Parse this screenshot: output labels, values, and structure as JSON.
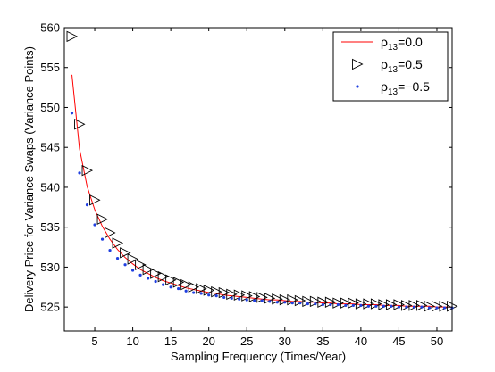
{
  "chart_data": {
    "type": "line",
    "xlabel": "Sampling Frequency (Times/Year)",
    "ylabel": "Delivery Price for Variance Swaps (Variance Points)",
    "xlim": [
      1,
      52
    ],
    "ylim": [
      522,
      560
    ],
    "xticks": [
      5,
      10,
      15,
      20,
      25,
      30,
      35,
      40,
      45,
      50
    ],
    "yticks": [
      525,
      530,
      535,
      540,
      545,
      550,
      555,
      560
    ],
    "grid": false,
    "legend_position": "top-right",
    "series": [
      {
        "name_main": "ρ",
        "name_sub": "13",
        "name_tail": "=0.0",
        "style": "line",
        "color": "#ff0000",
        "x": [
          2,
          3,
          4,
          5,
          6,
          7,
          8,
          9,
          10,
          11,
          12,
          13,
          14,
          15,
          16,
          17,
          18,
          19,
          20,
          21,
          22,
          23,
          24,
          25,
          26,
          27,
          28,
          29,
          30,
          31,
          32,
          33,
          34,
          35,
          36,
          37,
          38,
          39,
          40,
          41,
          42,
          43,
          44,
          45,
          46,
          47,
          48,
          49,
          50,
          51,
          52
        ],
        "values": [
          554.1,
          544.8,
          540.1,
          537.2,
          535.1,
          533.5,
          532.2,
          531.2,
          530.4,
          529.7,
          529.2,
          528.7,
          528.3,
          528.0,
          527.7,
          527.4,
          527.2,
          527.0,
          526.8,
          526.7,
          526.5,
          526.4,
          526.3,
          526.2,
          526.1,
          526.0,
          525.9,
          525.9,
          525.8,
          525.7,
          525.7,
          525.6,
          525.6,
          525.5,
          525.5,
          525.4,
          525.4,
          525.4,
          525.3,
          525.3,
          525.3,
          525.2,
          525.2,
          525.2,
          525.1,
          525.1,
          525.1,
          525.1,
          525.0,
          525.0,
          525.0
        ]
      },
      {
        "name_main": "ρ",
        "name_sub": "13",
        "name_tail": "=0.5",
        "style": "triangle",
        "color": "#000000",
        "x": [
          2,
          3,
          4,
          5,
          6,
          7,
          8,
          9,
          10,
          11,
          12,
          13,
          14,
          15,
          16,
          17,
          18,
          19,
          20,
          21,
          22,
          23,
          24,
          25,
          26,
          27,
          28,
          29,
          30,
          31,
          32,
          33,
          34,
          35,
          36,
          37,
          38,
          39,
          40,
          41,
          42,
          43,
          44,
          45,
          46,
          47,
          48,
          49,
          50,
          51,
          52
        ],
        "values": [
          558.9,
          547.9,
          542.1,
          538.4,
          536.0,
          534.3,
          533.0,
          531.8,
          531.0,
          530.3,
          529.7,
          529.2,
          528.8,
          528.4,
          528.1,
          527.8,
          527.5,
          527.3,
          527.1,
          526.9,
          526.8,
          526.6,
          526.5,
          526.4,
          526.3,
          526.2,
          526.1,
          526.0,
          525.9,
          525.9,
          525.8,
          525.7,
          525.7,
          525.6,
          525.6,
          525.5,
          525.5,
          525.5,
          525.4,
          525.4,
          525.4,
          525.3,
          525.3,
          525.3,
          525.2,
          525.2,
          525.2,
          525.1,
          525.1,
          525.1,
          525.1
        ]
      },
      {
        "name_main": "ρ",
        "name_sub": "13",
        "name_tail": "=−0.5",
        "style": "dot",
        "color": "#1f3fe0",
        "x": [
          2,
          3,
          4,
          5,
          6,
          7,
          8,
          9,
          10,
          11,
          12,
          13,
          14,
          15,
          16,
          17,
          18,
          19,
          20,
          21,
          22,
          23,
          24,
          25,
          26,
          27,
          28,
          29,
          30,
          31,
          32,
          33,
          34,
          35,
          36,
          37,
          38,
          39,
          40,
          41,
          42,
          43,
          44,
          45,
          46,
          47,
          48,
          49,
          50,
          51,
          52
        ],
        "values": [
          549.3,
          541.8,
          537.8,
          535.3,
          533.5,
          532.1,
          531.1,
          530.3,
          529.6,
          529.0,
          528.6,
          528.2,
          527.8,
          527.5,
          527.3,
          527.0,
          526.8,
          526.7,
          526.5,
          526.4,
          526.2,
          526.1,
          526.0,
          525.9,
          525.8,
          525.8,
          525.7,
          525.6,
          525.6,
          525.5,
          525.5,
          525.4,
          525.4,
          525.3,
          525.3,
          525.3,
          525.2,
          525.2,
          525.2,
          525.1,
          525.1,
          525.1,
          525.1,
          525.0,
          525.0,
          525.0,
          525.0,
          524.9,
          524.9,
          524.9,
          524.9
        ]
      }
    ]
  }
}
